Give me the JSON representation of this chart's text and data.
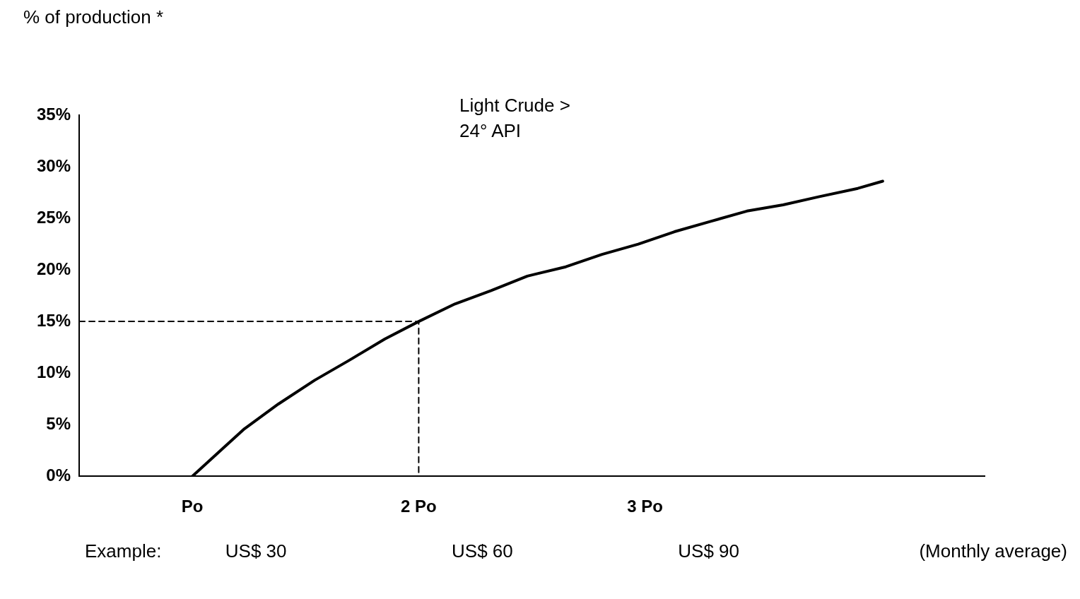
{
  "chart_data": {
    "type": "line",
    "ylabel": "% of production *",
    "annotations": [
      "Light Crude >\n24° API",
      "Example:",
      "US$ 30",
      "US$ 60",
      "US$ 90",
      "(Monthly average)"
    ],
    "xlim": [
      0.5,
      4.5
    ],
    "xticks": [
      {
        "value": 1,
        "label": "Po"
      },
      {
        "value": 2,
        "label": "2 Po"
      },
      {
        "value": 3,
        "label": "3 Po"
      }
    ],
    "ylim": [
      0,
      35
    ],
    "yticks": [
      {
        "value": 0,
        "label": "0%"
      },
      {
        "value": 5,
        "label": "5%"
      },
      {
        "value": 10,
        "label": "10%"
      },
      {
        "value": 15,
        "label": "15%"
      },
      {
        "value": 20,
        "label": "20%"
      },
      {
        "value": 25,
        "label": "25%"
      },
      {
        "value": 30,
        "label": "30%"
      },
      {
        "value": 35,
        "label": "35%"
      }
    ],
    "grid": false,
    "legend": false,
    "marker": "none",
    "series": [
      {
        "color": "#000000",
        "line_style": "solid",
        "x": [
          1,
          1.14,
          1.23,
          1.38,
          1.54,
          1.69,
          1.85,
          2,
          2.16,
          2.32,
          2.48,
          2.65,
          2.81,
          2.97,
          3.13,
          3.29,
          3.45,
          3.61,
          3.77,
          3.94,
          4.05
        ],
        "values": [
          0,
          2.8,
          4.6,
          7.0,
          9.3,
          11.2,
          13.3,
          15.0,
          16.7,
          18.0,
          19.4,
          20.3,
          21.5,
          22.5,
          23.7,
          24.7,
          25.7,
          26.3,
          27.1,
          27.9,
          28.6
        ]
      },
      {
        "color": "#000000",
        "line_style": "dashed",
        "x": [
          0.5,
          2,
          2
        ],
        "values": [
          15,
          15,
          0
        ]
      }
    ]
  }
}
